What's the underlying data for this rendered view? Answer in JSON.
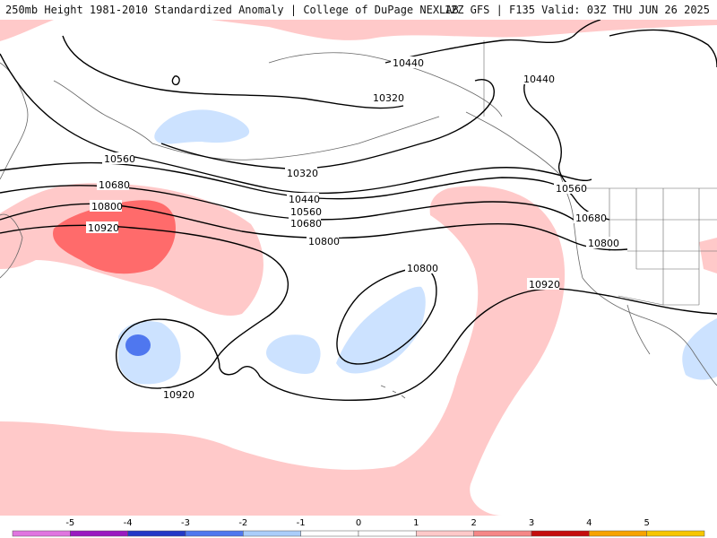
{
  "header": {
    "title_left": "250mb Height 1981-2010 Standardized Anomaly | College of DuPage NEXLAB",
    "title_right": "12Z GFS | F135 Valid: 03Z THU JUN 26 2025"
  },
  "colors": {
    "anom_pos1": "#ffc9c9",
    "anom_pos2": "#ff6b6b",
    "anom_neg1": "#cce2ff",
    "anom_neg2": "#4f77ef",
    "contour": "#000000",
    "borders": "#666666"
  },
  "contour_labels": [
    "10440",
    "10320",
    "10440",
    "10320",
    "10560",
    "10440",
    "10560",
    "10680",
    "10560",
    "10800",
    "10680",
    "10920",
    "10680",
    "10800",
    "10800",
    "10800",
    "10920",
    "10920"
  ],
  "legend": {
    "ticks": [
      "-5",
      "-4",
      "-3",
      "-2",
      "-1",
      "0",
      "1",
      "2",
      "3",
      "4",
      "5"
    ],
    "colors": [
      "#e075e0",
      "#9a1ac0",
      "#2438c7",
      "#4f77ef",
      "#aacdfa",
      "#ffffff",
      "#ffffff",
      "#ffc9c9",
      "#f58787",
      "#c40d0d",
      "#f7a300",
      "#f7c600"
    ]
  }
}
